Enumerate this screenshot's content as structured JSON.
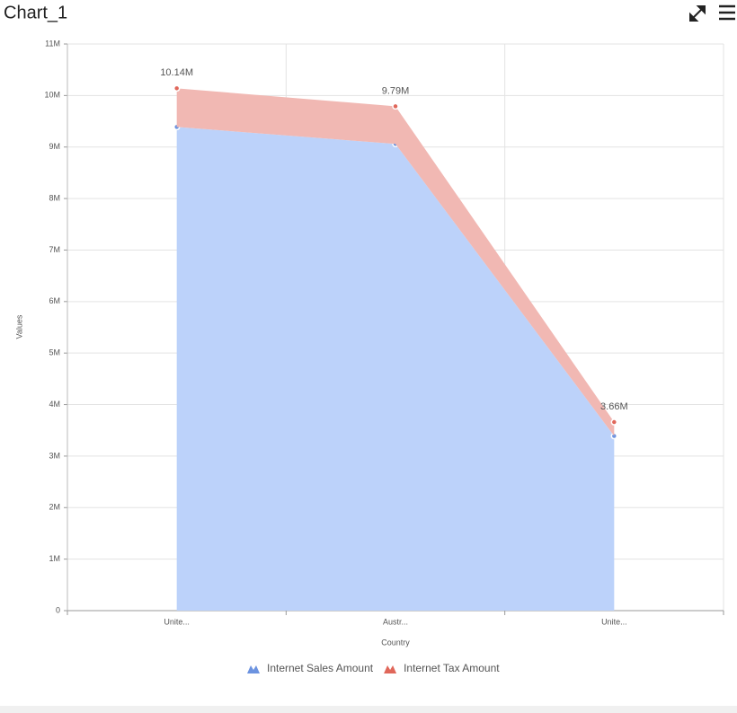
{
  "chart_data": {
    "type": "stacked_area",
    "title": "Chart_1",
    "x_label": "Country",
    "y_label": "Values",
    "categories": [
      "Unite...",
      "Austr...",
      "Unite..."
    ],
    "series": [
      {
        "name": "Internet Sales Amount",
        "color": "#6c93e0",
        "fill": "#bcd2fa",
        "values": [
          9390000,
          9060000,
          3390000
        ]
      },
      {
        "name": "Internet Tax Amount",
        "color": "#e0675a",
        "fill": "#f1b8b3",
        "values": [
          750000,
          730000,
          270000
        ]
      }
    ],
    "annotations": [
      "10.14M",
      "9.79M",
      "3.66M"
    ],
    "ylim": [
      0,
      11000000
    ],
    "yticks": [
      0,
      {
        "value": 1000000,
        "label": "1M"
      },
      {
        "value": 2000000,
        "label": "2M"
      },
      {
        "value": 3000000,
        "label": "3M"
      },
      {
        "value": 4000000,
        "label": "4M"
      },
      {
        "value": 5000000,
        "label": "5M"
      },
      {
        "value": 6000000,
        "label": "6M"
      },
      {
        "value": 7000000,
        "label": "7M"
      },
      {
        "value": 8000000,
        "label": "8M"
      },
      {
        "value": 9000000,
        "label": "9M"
      },
      {
        "value": 10000000,
        "label": "10M"
      },
      {
        "value": 11000000,
        "label": "11M"
      }
    ],
    "grid": true,
    "legend": "bottom"
  }
}
